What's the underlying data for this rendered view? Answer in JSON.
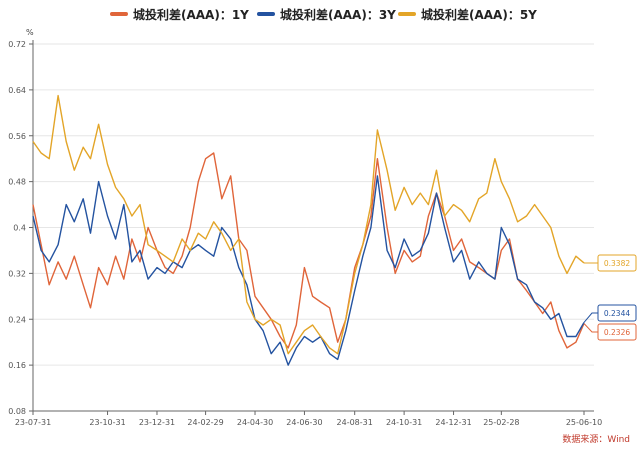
{
  "chart_data": {
    "type": "line",
    "title": "",
    "ylabel": "%",
    "xlabel": "",
    "ylim": [
      0.08,
      0.72
    ],
    "yticks": [
      "0.08",
      "0.16",
      "0.24",
      "0.32",
      "0.4",
      "0.48",
      "0.56",
      "0.64",
      "0.72"
    ],
    "x_start": "2023-07-31",
    "x_end": "2025-06-10",
    "xticks": [
      "23-07-31",
      "23-10-31",
      "23-12-31",
      "24-02-29",
      "24-04-30",
      "24-06-30",
      "24-08-31",
      "24-10-31",
      "24-12-31",
      "25-02-28",
      "25-06-10"
    ],
    "legend_position": "top-center",
    "series": [
      {
        "name": "城投利差(AAA)：1Y",
        "color": "#e0653a",
        "last_label": "0.2326",
        "points": [
          [
            "2023-07-31",
            0.44
          ],
          [
            "2023-08-10",
            0.37
          ],
          [
            "2023-08-20",
            0.3
          ],
          [
            "2023-08-31",
            0.34
          ],
          [
            "2023-09-10",
            0.31
          ],
          [
            "2023-09-20",
            0.35
          ],
          [
            "2023-10-01",
            0.3
          ],
          [
            "2023-10-10",
            0.26
          ],
          [
            "2023-10-20",
            0.33
          ],
          [
            "2023-10-31",
            0.3
          ],
          [
            "2023-11-10",
            0.35
          ],
          [
            "2023-11-20",
            0.31
          ],
          [
            "2023-11-30",
            0.38
          ],
          [
            "2023-12-10",
            0.34
          ],
          [
            "2023-12-20",
            0.4
          ],
          [
            "2023-12-31",
            0.36
          ],
          [
            "2024-01-10",
            0.33
          ],
          [
            "2024-01-20",
            0.32
          ],
          [
            "2024-01-31",
            0.35
          ],
          [
            "2024-02-10",
            0.4
          ],
          [
            "2024-02-20",
            0.48
          ],
          [
            "2024-02-29",
            0.52
          ],
          [
            "2024-03-10",
            0.53
          ],
          [
            "2024-03-20",
            0.45
          ],
          [
            "2024-03-31",
            0.49
          ],
          [
            "2024-04-10",
            0.38
          ],
          [
            "2024-04-20",
            0.36
          ],
          [
            "2024-04-30",
            0.28
          ],
          [
            "2024-05-10",
            0.26
          ],
          [
            "2024-05-20",
            0.24
          ],
          [
            "2024-05-31",
            0.21
          ],
          [
            "2024-06-10",
            0.19
          ],
          [
            "2024-06-20",
            0.23
          ],
          [
            "2024-06-30",
            0.33
          ],
          [
            "2024-07-10",
            0.28
          ],
          [
            "2024-07-20",
            0.27
          ],
          [
            "2024-07-31",
            0.26
          ],
          [
            "2024-08-10",
            0.2
          ],
          [
            "2024-08-20",
            0.24
          ],
          [
            "2024-08-31",
            0.33
          ],
          [
            "2024-09-10",
            0.37
          ],
          [
            "2024-09-20",
            0.42
          ],
          [
            "2024-09-28",
            0.52
          ],
          [
            "2024-10-10",
            0.4
          ],
          [
            "2024-10-20",
            0.32
          ],
          [
            "2024-10-31",
            0.36
          ],
          [
            "2024-11-10",
            0.34
          ],
          [
            "2024-11-20",
            0.35
          ],
          [
            "2024-11-30",
            0.42
          ],
          [
            "2024-12-10",
            0.46
          ],
          [
            "2024-12-20",
            0.42
          ],
          [
            "2024-12-31",
            0.36
          ],
          [
            "2025-01-10",
            0.38
          ],
          [
            "2025-01-20",
            0.34
          ],
          [
            "2025-01-31",
            0.33
          ],
          [
            "2025-02-10",
            0.32
          ],
          [
            "2025-02-20",
            0.31
          ],
          [
            "2025-02-28",
            0.36
          ],
          [
            "2025-03-10",
            0.38
          ],
          [
            "2025-03-20",
            0.31
          ],
          [
            "2025-03-31",
            0.29
          ],
          [
            "2025-04-10",
            0.27
          ],
          [
            "2025-04-20",
            0.25
          ],
          [
            "2025-04-30",
            0.27
          ],
          [
            "2025-05-10",
            0.22
          ],
          [
            "2025-05-20",
            0.19
          ],
          [
            "2025-05-31",
            0.2
          ],
          [
            "2025-06-10",
            0.2326
          ]
        ]
      },
      {
        "name": "城投利差(AAA)：3Y",
        "color": "#2453a0",
        "last_label": "0.2344",
        "points": [
          [
            "2023-07-31",
            0.42
          ],
          [
            "2023-08-10",
            0.36
          ],
          [
            "2023-08-20",
            0.34
          ],
          [
            "2023-08-31",
            0.37
          ],
          [
            "2023-09-10",
            0.44
          ],
          [
            "2023-09-20",
            0.41
          ],
          [
            "2023-10-01",
            0.45
          ],
          [
            "2023-10-10",
            0.39
          ],
          [
            "2023-10-20",
            0.48
          ],
          [
            "2023-10-31",
            0.42
          ],
          [
            "2023-11-10",
            0.38
          ],
          [
            "2023-11-20",
            0.44
          ],
          [
            "2023-11-30",
            0.34
          ],
          [
            "2023-12-10",
            0.36
          ],
          [
            "2023-12-20",
            0.31
          ],
          [
            "2023-12-31",
            0.33
          ],
          [
            "2024-01-10",
            0.32
          ],
          [
            "2024-01-20",
            0.34
          ],
          [
            "2024-01-31",
            0.33
          ],
          [
            "2024-02-10",
            0.36
          ],
          [
            "2024-02-20",
            0.37
          ],
          [
            "2024-02-29",
            0.36
          ],
          [
            "2024-03-10",
            0.35
          ],
          [
            "2024-03-20",
            0.4
          ],
          [
            "2024-03-31",
            0.38
          ],
          [
            "2024-04-10",
            0.33
          ],
          [
            "2024-04-20",
            0.3
          ],
          [
            "2024-04-30",
            0.24
          ],
          [
            "2024-05-10",
            0.22
          ],
          [
            "2024-05-20",
            0.18
          ],
          [
            "2024-05-31",
            0.2
          ],
          [
            "2024-06-10",
            0.16
          ],
          [
            "2024-06-20",
            0.19
          ],
          [
            "2024-06-30",
            0.21
          ],
          [
            "2024-07-10",
            0.2
          ],
          [
            "2024-07-20",
            0.21
          ],
          [
            "2024-07-31",
            0.18
          ],
          [
            "2024-08-10",
            0.17
          ],
          [
            "2024-08-20",
            0.22
          ],
          [
            "2024-08-31",
            0.29
          ],
          [
            "2024-09-10",
            0.35
          ],
          [
            "2024-09-20",
            0.4
          ],
          [
            "2024-09-28",
            0.49
          ],
          [
            "2024-10-10",
            0.36
          ],
          [
            "2024-10-20",
            0.33
          ],
          [
            "2024-10-31",
            0.38
          ],
          [
            "2024-11-10",
            0.35
          ],
          [
            "2024-11-20",
            0.36
          ],
          [
            "2024-11-30",
            0.39
          ],
          [
            "2024-12-10",
            0.46
          ],
          [
            "2024-12-20",
            0.4
          ],
          [
            "2024-12-31",
            0.34
          ],
          [
            "2025-01-10",
            0.36
          ],
          [
            "2025-01-20",
            0.31
          ],
          [
            "2025-01-31",
            0.34
          ],
          [
            "2025-02-10",
            0.32
          ],
          [
            "2025-02-20",
            0.31
          ],
          [
            "2025-02-28",
            0.4
          ],
          [
            "2025-03-10",
            0.37
          ],
          [
            "2025-03-20",
            0.31
          ],
          [
            "2025-03-31",
            0.3
          ],
          [
            "2025-04-10",
            0.27
          ],
          [
            "2025-04-20",
            0.26
          ],
          [
            "2025-04-30",
            0.24
          ],
          [
            "2025-05-10",
            0.25
          ],
          [
            "2025-05-20",
            0.21
          ],
          [
            "2025-05-31",
            0.21
          ],
          [
            "2025-06-10",
            0.2344
          ]
        ]
      },
      {
        "name": "城投利差(AAA)：5Y",
        "color": "#e3a528",
        "last_label": "0.3382",
        "points": [
          [
            "2023-07-31",
            0.55
          ],
          [
            "2023-08-10",
            0.53
          ],
          [
            "2023-08-20",
            0.52
          ],
          [
            "2023-08-31",
            0.63
          ],
          [
            "2023-09-10",
            0.55
          ],
          [
            "2023-09-20",
            0.5
          ],
          [
            "2023-10-01",
            0.54
          ],
          [
            "2023-10-10",
            0.52
          ],
          [
            "2023-10-20",
            0.58
          ],
          [
            "2023-10-31",
            0.51
          ],
          [
            "2023-11-10",
            0.47
          ],
          [
            "2023-11-20",
            0.45
          ],
          [
            "2023-11-30",
            0.42
          ],
          [
            "2023-12-10",
            0.44
          ],
          [
            "2023-12-20",
            0.37
          ],
          [
            "2023-12-31",
            0.36
          ],
          [
            "2024-01-10",
            0.35
          ],
          [
            "2024-01-20",
            0.34
          ],
          [
            "2024-01-31",
            0.38
          ],
          [
            "2024-02-10",
            0.36
          ],
          [
            "2024-02-20",
            0.39
          ],
          [
            "2024-02-29",
            0.38
          ],
          [
            "2024-03-10",
            0.41
          ],
          [
            "2024-03-20",
            0.39
          ],
          [
            "2024-03-31",
            0.36
          ],
          [
            "2024-04-10",
            0.38
          ],
          [
            "2024-04-20",
            0.27
          ],
          [
            "2024-04-30",
            0.24
          ],
          [
            "2024-05-10",
            0.23
          ],
          [
            "2024-05-20",
            0.24
          ],
          [
            "2024-05-31",
            0.23
          ],
          [
            "2024-06-10",
            0.18
          ],
          [
            "2024-06-20",
            0.2
          ],
          [
            "2024-06-30",
            0.22
          ],
          [
            "2024-07-10",
            0.23
          ],
          [
            "2024-07-20",
            0.21
          ],
          [
            "2024-07-31",
            0.19
          ],
          [
            "2024-08-10",
            0.18
          ],
          [
            "2024-08-20",
            0.24
          ],
          [
            "2024-08-31",
            0.32
          ],
          [
            "2024-09-10",
            0.37
          ],
          [
            "2024-09-20",
            0.44
          ],
          [
            "2024-09-28",
            0.57
          ],
          [
            "2024-10-10",
            0.5
          ],
          [
            "2024-10-20",
            0.43
          ],
          [
            "2024-10-31",
            0.47
          ],
          [
            "2024-11-10",
            0.44
          ],
          [
            "2024-11-20",
            0.46
          ],
          [
            "2024-11-30",
            0.44
          ],
          [
            "2024-12-10",
            0.5
          ],
          [
            "2024-12-20",
            0.42
          ],
          [
            "2024-12-31",
            0.44
          ],
          [
            "2025-01-10",
            0.43
          ],
          [
            "2025-01-20",
            0.41
          ],
          [
            "2025-01-31",
            0.45
          ],
          [
            "2025-02-10",
            0.46
          ],
          [
            "2025-02-20",
            0.52
          ],
          [
            "2025-02-28",
            0.48
          ],
          [
            "2025-03-10",
            0.45
          ],
          [
            "2025-03-20",
            0.41
          ],
          [
            "2025-03-31",
            0.42
          ],
          [
            "2025-04-10",
            0.44
          ],
          [
            "2025-04-20",
            0.42
          ],
          [
            "2025-04-30",
            0.4
          ],
          [
            "2025-05-10",
            0.35
          ],
          [
            "2025-05-20",
            0.32
          ],
          [
            "2025-05-31",
            0.35
          ],
          [
            "2025-06-10",
            0.3382
          ]
        ]
      }
    ]
  },
  "legend": {
    "items": [
      {
        "label": "城投利差(AAA)：1Y",
        "color": "#e0653a"
      },
      {
        "label": "城投利差(AAA)：3Y",
        "color": "#2453a0"
      },
      {
        "label": "城投利差(AAA)：5Y",
        "color": "#e3a528"
      }
    ]
  },
  "unit_label": "%",
  "source_note": "数据来源：Wind"
}
